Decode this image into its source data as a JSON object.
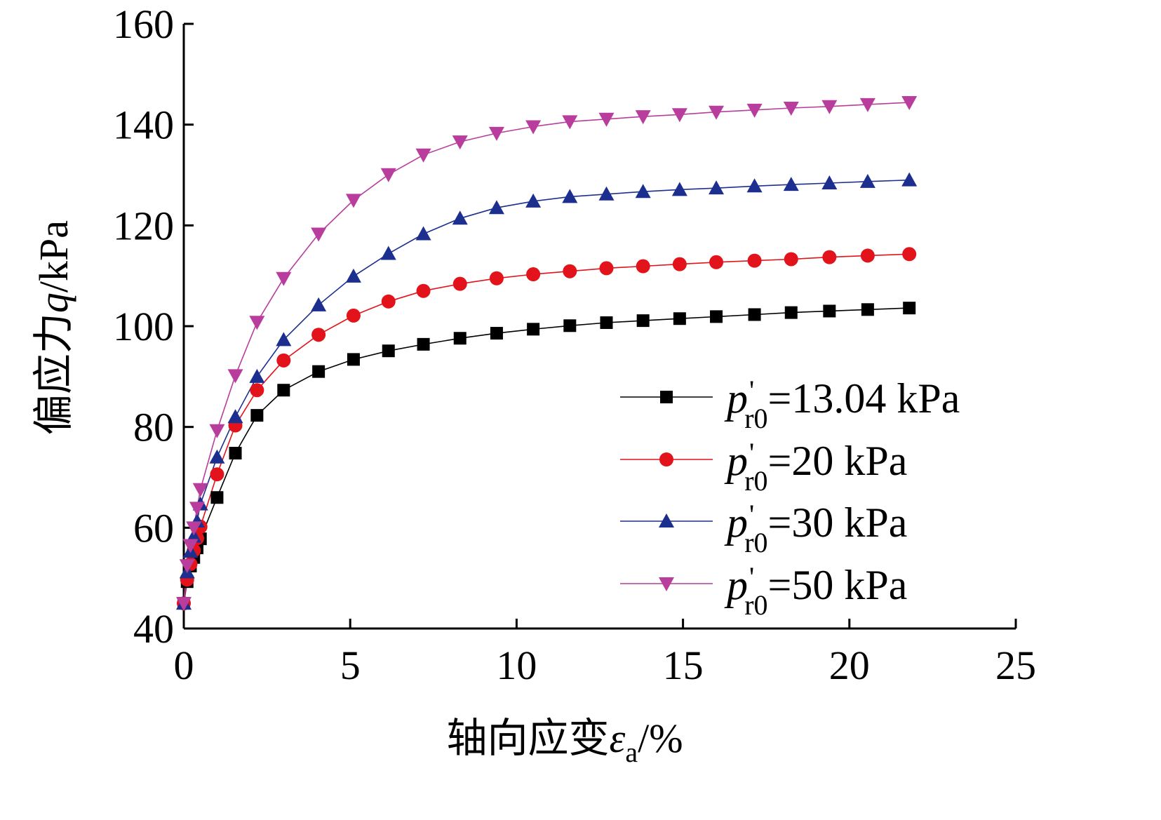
{
  "chart_data": {
    "type": "line",
    "xlabel": "轴向应变ε_a/%",
    "xlabel_parts": {
      "text": "轴向应变",
      "symbol": "ε",
      "subscript": "a",
      "suffix": "/%"
    },
    "ylabel": "偏应力q/kPa",
    "ylabel_parts": {
      "text": "偏应力",
      "symbol": "q",
      "suffix": "/kPa"
    },
    "xlim": [
      0,
      25
    ],
    "ylim": [
      40,
      160
    ],
    "xticks": [
      "0",
      "5",
      "10",
      "15",
      "20",
      "25"
    ],
    "yticks": [
      "40",
      "60",
      "80",
      "100",
      "120",
      "140",
      "160"
    ],
    "grid": false,
    "legend_position": "right",
    "series": [
      {
        "name": "p'r0=13.04 kPa",
        "legend": {
          "symbol": "p",
          "prime": "'",
          "subscript": "r0",
          "value": "=13.04 kPa"
        },
        "marker": "square",
        "color": "#000000",
        "line_color": "#000000",
        "points": [
          [
            0.0,
            45.0
          ],
          [
            0.1,
            49.3
          ],
          [
            0.2,
            52.4
          ],
          [
            0.3,
            54.1
          ],
          [
            0.4,
            56.0
          ],
          [
            0.5,
            57.8
          ],
          [
            1.0,
            66.0
          ],
          [
            1.55,
            74.8
          ],
          [
            2.2,
            82.3
          ],
          [
            3.0,
            87.3
          ],
          [
            4.05,
            91.0
          ],
          [
            5.1,
            93.4
          ],
          [
            6.15,
            95.1
          ],
          [
            7.2,
            96.4
          ],
          [
            8.3,
            97.6
          ],
          [
            9.4,
            98.6
          ],
          [
            10.5,
            99.4
          ],
          [
            11.6,
            100.1
          ],
          [
            12.7,
            100.7
          ],
          [
            13.8,
            101.1
          ],
          [
            14.9,
            101.5
          ],
          [
            16.0,
            101.9
          ],
          [
            17.15,
            102.3
          ],
          [
            18.25,
            102.7
          ],
          [
            19.4,
            103.0
          ],
          [
            20.55,
            103.3
          ],
          [
            21.8,
            103.6
          ]
        ]
      },
      {
        "name": "p'r0=20 kPa",
        "legend": {
          "symbol": "p",
          "prime": "'",
          "subscript": "r0",
          "value": "=20 kPa"
        },
        "marker": "circle",
        "color": "#e3131b",
        "line_color": "#e3131b",
        "points": [
          [
            0.0,
            45.0
          ],
          [
            0.1,
            49.7
          ],
          [
            0.2,
            52.8
          ],
          [
            0.3,
            55.5
          ],
          [
            0.4,
            57.9
          ],
          [
            0.5,
            60.2
          ],
          [
            1.0,
            70.6
          ],
          [
            1.55,
            80.3
          ],
          [
            2.2,
            87.3
          ],
          [
            3.0,
            93.2
          ],
          [
            4.05,
            98.3
          ],
          [
            5.1,
            102.1
          ],
          [
            6.15,
            104.9
          ],
          [
            7.2,
            107.0
          ],
          [
            8.3,
            108.4
          ],
          [
            9.4,
            109.5
          ],
          [
            10.5,
            110.3
          ],
          [
            11.6,
            110.9
          ],
          [
            12.7,
            111.5
          ],
          [
            13.8,
            111.9
          ],
          [
            14.9,
            112.3
          ],
          [
            16.0,
            112.7
          ],
          [
            17.15,
            113.0
          ],
          [
            18.25,
            113.3
          ],
          [
            19.4,
            113.7
          ],
          [
            20.55,
            114.0
          ],
          [
            21.8,
            114.3
          ]
        ]
      },
      {
        "name": "p'r0=30 kPa",
        "legend": {
          "symbol": "p",
          "prime": "'",
          "subscript": "r0",
          "value": "=30 kPa"
        },
        "marker": "triangle-up",
        "color": "#1c2f8f",
        "line_color": "#1c2f8f",
        "points": [
          [
            0.0,
            45.0
          ],
          [
            0.1,
            51.2
          ],
          [
            0.2,
            55.3
          ],
          [
            0.3,
            58.3
          ],
          [
            0.4,
            61.3
          ],
          [
            0.5,
            64.7
          ],
          [
            1.0,
            74.0
          ],
          [
            1.55,
            82.0
          ],
          [
            2.2,
            90.0
          ],
          [
            3.0,
            97.3
          ],
          [
            4.05,
            104.2
          ],
          [
            5.1,
            109.9
          ],
          [
            6.15,
            114.4
          ],
          [
            7.2,
            118.3
          ],
          [
            8.3,
            121.4
          ],
          [
            9.4,
            123.5
          ],
          [
            10.5,
            124.8
          ],
          [
            11.6,
            125.7
          ],
          [
            12.7,
            126.2
          ],
          [
            13.8,
            126.7
          ],
          [
            14.9,
            127.1
          ],
          [
            16.0,
            127.4
          ],
          [
            17.15,
            127.8
          ],
          [
            18.25,
            128.1
          ],
          [
            19.4,
            128.4
          ],
          [
            20.55,
            128.7
          ],
          [
            21.8,
            129.0
          ]
        ]
      },
      {
        "name": "p'r0=50 kPa",
        "legend": {
          "symbol": "p",
          "prime": "'",
          "subscript": "r0",
          "value": "=50 kPa"
        },
        "marker": "triangle-down",
        "color": "#b83d9c",
        "line_color": "#b83d9c",
        "points": [
          [
            0.0,
            45.0
          ],
          [
            0.1,
            52.5
          ],
          [
            0.2,
            56.5
          ],
          [
            0.3,
            60.0
          ],
          [
            0.4,
            63.9
          ],
          [
            0.5,
            67.6
          ],
          [
            1.0,
            79.3
          ],
          [
            1.55,
            90.2
          ],
          [
            2.2,
            100.8
          ],
          [
            3.0,
            109.5
          ],
          [
            4.05,
            118.3
          ],
          [
            5.1,
            125.0
          ],
          [
            6.15,
            130.1
          ],
          [
            7.2,
            134.0
          ],
          [
            8.3,
            136.6
          ],
          [
            9.4,
            138.3
          ],
          [
            10.5,
            139.6
          ],
          [
            11.6,
            140.6
          ],
          [
            12.7,
            141.1
          ],
          [
            13.8,
            141.6
          ],
          [
            14.9,
            142.0
          ],
          [
            16.0,
            142.5
          ],
          [
            17.15,
            142.9
          ],
          [
            18.25,
            143.3
          ],
          [
            19.4,
            143.6
          ],
          [
            20.55,
            144.0
          ],
          [
            21.8,
            144.4
          ]
        ]
      }
    ]
  }
}
